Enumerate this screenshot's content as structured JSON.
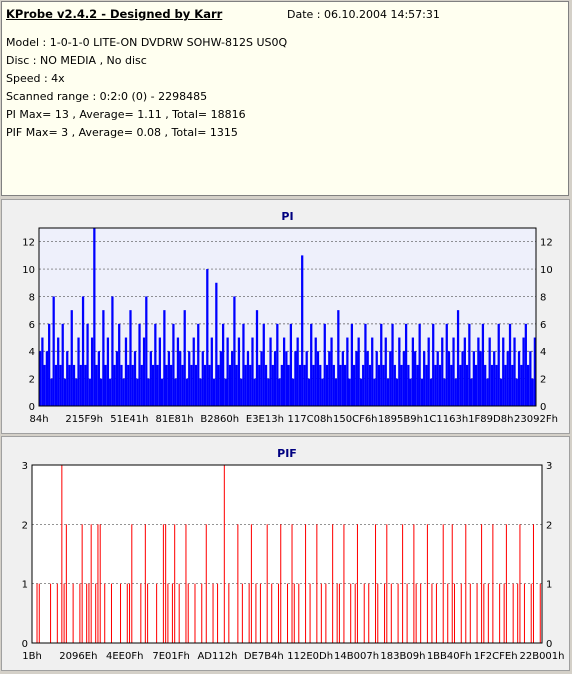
{
  "header": {
    "title": "KProbe v2.4.2 - Designed by Karr",
    "date": "Date : 06.10.2004 14:57:31",
    "lines": [
      "Model : 1-0-1-0 LITE-ON DVDRW SOHW-812S  US0Q",
      "Disc : NO MEDIA , No disc",
      "Speed : 4x",
      "Scanned range : 0:2:0 (0) - 2298485",
      "PI Max= 13 , Average= 1.11 , Total= 18816",
      "PIF Max= 3 , Average= 0.08 , Total= 1315"
    ]
  },
  "colors": {
    "pi": "#0000ff",
    "pif": "#ff0000",
    "plot_bg": "#eef0fb",
    "pif_bg": "#ffffff"
  },
  "chart_data": [
    {
      "type": "bar",
      "title": "PI",
      "ylim": [
        0,
        13
      ],
      "yticks": [
        0,
        2,
        4,
        6,
        8,
        10,
        12
      ],
      "xticklabels": [
        "84h",
        "215F9h",
        "51E41h",
        "81E81h",
        "B2860h",
        "E3E13h",
        "117C08h",
        "150CF6h",
        "1895B9h",
        "1C1163h",
        "1F89D8h",
        "23092Fh"
      ],
      "grid": true,
      "values": [
        4,
        5,
        3,
        4,
        6,
        2,
        8,
        3,
        5,
        3,
        6,
        2,
        4,
        3,
        7,
        3,
        2,
        5,
        3,
        8,
        3,
        6,
        2,
        5,
        13,
        3,
        4,
        2,
        7,
        3,
        5,
        2,
        8,
        3,
        4,
        6,
        3,
        2,
        5,
        3,
        7,
        3,
        4,
        2,
        6,
        3,
        5,
        8,
        2,
        4,
        3,
        6,
        3,
        5,
        2,
        7,
        3,
        4,
        3,
        6,
        2,
        5,
        4,
        3,
        7,
        2,
        4,
        3,
        5,
        3,
        6,
        2,
        4,
        3,
        10,
        3,
        5,
        2,
        9,
        3,
        4,
        6,
        2,
        5,
        3,
        4,
        8,
        3,
        5,
        2,
        6,
        3,
        4,
        3,
        5,
        2,
        7,
        3,
        4,
        6,
        3,
        2,
        5,
        3,
        4,
        6,
        2,
        3,
        5,
        4,
        3,
        6,
        2,
        4,
        5,
        3,
        11,
        3,
        4,
        2,
        6,
        3,
        5,
        4,
        3,
        2,
        6,
        3,
        4,
        5,
        3,
        2,
        7,
        3,
        4,
        3,
        5,
        2,
        6,
        3,
        4,
        5,
        2,
        3,
        6,
        4,
        3,
        5,
        2,
        4,
        3,
        6,
        3,
        5,
        2,
        4,
        6,
        3,
        2,
        5,
        3,
        4,
        6,
        3,
        2,
        5,
        4,
        3,
        6,
        2,
        4,
        3,
        5,
        2,
        6,
        3,
        4,
        3,
        5,
        2,
        6,
        4,
        3,
        5,
        2,
        7,
        3,
        4,
        5,
        3,
        6,
        2,
        4,
        3,
        5,
        4,
        6,
        3,
        2,
        5,
        3,
        4,
        3,
        6,
        2,
        5,
        3,
        4,
        6,
        3,
        5,
        2,
        4,
        3,
        5,
        6,
        3,
        4,
        2,
        5
      ]
    },
    {
      "type": "bar",
      "title": "PIF",
      "ylim": [
        0,
        3
      ],
      "yticks": [
        0,
        1,
        2,
        3
      ],
      "xticklabels": [
        "1Bh",
        "2096Eh",
        "4EE0Fh",
        "7E01Fh",
        "AD112h",
        "DE7B4h",
        "112E0Dh",
        "14B007h",
        "183B09h",
        "1BB40Fh",
        "1F2CFEh",
        "22B001h"
      ],
      "grid": true,
      "values": [
        0,
        0,
        1,
        1,
        0,
        0,
        0,
        0,
        1,
        0,
        0,
        1,
        0,
        3,
        1,
        2,
        0,
        0,
        1,
        0,
        0,
        1,
        2,
        0,
        1,
        1,
        2,
        0,
        1,
        2,
        2,
        0,
        1,
        0,
        0,
        1,
        0,
        0,
        0,
        1,
        0,
        0,
        1,
        1,
        2,
        0,
        0,
        0,
        1,
        0,
        2,
        1,
        0,
        0,
        0,
        1,
        0,
        0,
        2,
        2,
        1,
        0,
        1,
        2,
        0,
        1,
        0,
        0,
        2,
        1,
        0,
        0,
        1,
        0,
        0,
        1,
        0,
        2,
        0,
        0,
        1,
        0,
        1,
        0,
        0,
        3,
        0,
        1,
        0,
        0,
        0,
        2,
        0,
        1,
        0,
        0,
        1,
        2,
        0,
        1,
        0,
        1,
        0,
        0,
        2,
        0,
        1,
        0,
        0,
        1,
        2,
        0,
        0,
        1,
        0,
        2,
        1,
        0,
        1,
        0,
        0,
        2,
        0,
        1,
        0,
        0,
        2,
        0,
        1,
        0,
        1,
        0,
        0,
        2,
        0,
        1,
        1,
        0,
        2,
        0,
        0,
        1,
        0,
        1,
        2,
        0,
        0,
        1,
        0,
        1,
        0,
        0,
        2,
        1,
        0,
        0,
        1,
        2,
        0,
        1,
        0,
        0,
        1,
        0,
        2,
        0,
        1,
        0,
        0,
        2,
        1,
        0,
        1,
        0,
        0,
        2,
        0,
        1,
        0,
        1,
        0,
        0,
        2,
        0,
        1,
        0,
        2,
        1,
        0,
        0,
        1,
        0,
        2,
        0,
        1,
        0,
        0,
        1,
        0,
        2,
        1,
        0,
        1,
        0,
        2,
        0,
        0,
        1,
        0,
        1,
        2,
        0,
        0,
        1,
        0,
        1,
        2,
        0,
        1,
        0,
        0,
        1,
        2,
        0,
        0,
        1
      ]
    }
  ]
}
